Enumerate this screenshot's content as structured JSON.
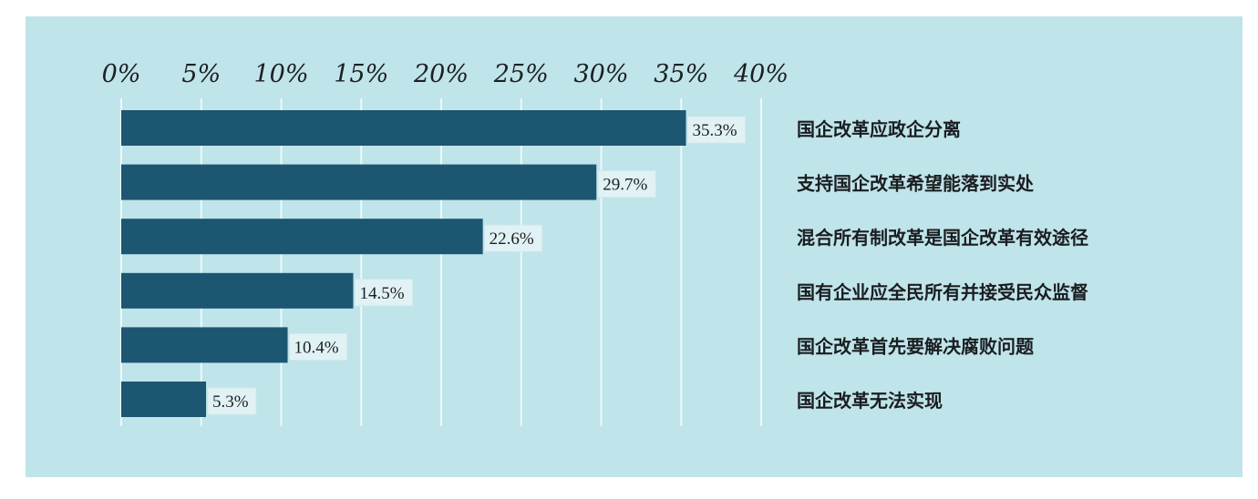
{
  "chart_data": {
    "type": "bar",
    "orientation": "horizontal",
    "title": "",
    "xlabel": "",
    "ylabel": "",
    "xlim": [
      0,
      40
    ],
    "tick_step": 5,
    "tick_labels": [
      "0%",
      "5%",
      "10%",
      "15%",
      "20%",
      "25%",
      "30%",
      "35%",
      "40%"
    ],
    "grid": true,
    "categories": [
      "国企改革应政企分离",
      "支持国企改革希望能落到实处",
      "混合所有制改革是国企改革有效途径",
      "国有企业应全民所有并接受民众监督",
      "国企改革首先要解决腐败问题",
      "国企改革无法实现"
    ],
    "values": [
      35.3,
      29.7,
      22.6,
      14.5,
      10.4,
      5.3
    ],
    "value_labels": [
      "35.3%",
      "29.7%",
      "22.6%",
      "14.5%",
      "10.4%",
      "5.3%"
    ]
  },
  "colors": {
    "panel_background": "#bfe4ea",
    "bar": "#1d5670",
    "grid": "#eef8fa",
    "value_label_background": "#e1f2f5",
    "text": "#1c1f22"
  }
}
